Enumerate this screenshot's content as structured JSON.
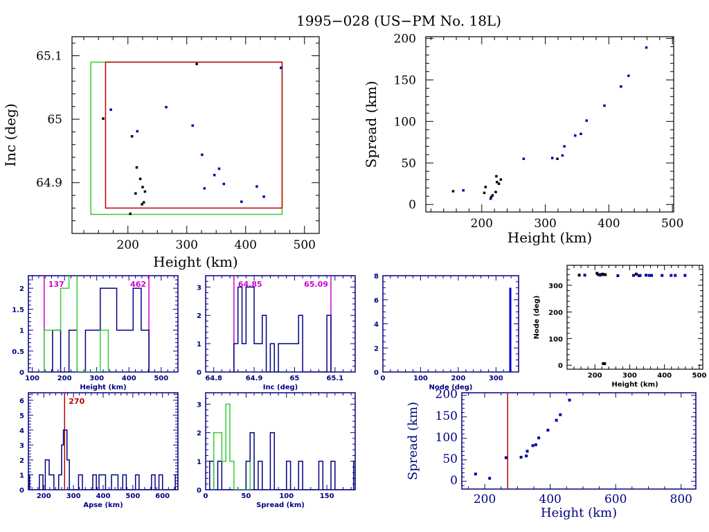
{
  "title": "1995−028 (US−PM No. 18L)",
  "colors": {
    "axis_black": "#000000",
    "axis_blue": "#000080",
    "blue_points": "#0000b0",
    "black_points": "#000000",
    "green": "#33cc33",
    "red": "#c00000",
    "magenta": "#d000d0",
    "node_bar": "#0000cc"
  },
  "chart_data": [
    {
      "id": "inc-vs-height",
      "type": "scatter",
      "title": "",
      "xlabel": "Height (km)",
      "ylabel": "Inc (deg)",
      "xlim": [
        105,
        525
      ],
      "ylim": [
        64.82,
        65.13
      ],
      "xticks": [
        200,
        300,
        400,
        500
      ],
      "yticks": [
        64.9,
        65,
        65.1
      ],
      "xtick_labels": [
        "200",
        "300",
        "400",
        "500"
      ],
      "ytick_labels": [
        "64.9",
        "65",
        "65.1"
      ],
      "style": "black-axes",
      "boxes": [
        {
          "name": "green-box",
          "color": "green",
          "x": [
            137,
            462
          ],
          "y": [
            64.85,
            65.09
          ]
        },
        {
          "name": "red-box",
          "color": "red",
          "x": [
            162,
            462
          ],
          "y": [
            64.86,
            65.09
          ]
        }
      ],
      "series": [
        {
          "name": "black",
          "color": "black_points",
          "points": [
            [
              317,
              65.087
            ],
            [
              158,
              65.001
            ],
            [
              207,
              64.973
            ],
            [
              215,
              64.924
            ],
            [
              221,
              64.906
            ],
            [
              225,
              64.893
            ],
            [
              213,
              64.883
            ],
            [
              229,
              64.886
            ],
            [
              224,
              64.866
            ],
            [
              227,
              64.869
            ],
            [
              204,
              64.851
            ]
          ]
        },
        {
          "name": "blue",
          "color": "blue_points",
          "points": [
            [
              460,
              65.081
            ],
            [
              171,
              65.015
            ],
            [
              265,
              65.019
            ],
            [
              310,
              64.99
            ],
            [
              216,
              64.981
            ],
            [
              326,
              64.944
            ],
            [
              355,
              64.922
            ],
            [
              347,
              64.912
            ],
            [
              363,
              64.898
            ],
            [
              330,
              64.891
            ],
            [
              419,
              64.894
            ],
            [
              431,
              64.878
            ],
            [
              393,
              64.87
            ]
          ]
        }
      ]
    },
    {
      "id": "spread-vs-height",
      "type": "scatter",
      "title": "",
      "xlabel": "Height (km)",
      "ylabel": "Spread (km)",
      "xlim": [
        112,
        502
      ],
      "ylim": [
        -9,
        202
      ],
      "xticks": [
        200,
        300,
        400,
        500
      ],
      "yticks": [
        0,
        50,
        100,
        150,
        200
      ],
      "xtick_labels": [
        "200",
        "300",
        "400",
        "500"
      ],
      "ytick_labels": [
        "0",
        "50",
        "100",
        "150",
        "200"
      ],
      "style": "black-axes",
      "series": [
        {
          "name": "black",
          "color": "black_points",
          "points": [
            [
              155,
              16
            ],
            [
              204,
              14
            ],
            [
              206,
              21
            ],
            [
              217,
              11
            ],
            [
              215,
              9
            ],
            [
              222,
              15
            ],
            [
              223,
              34
            ],
            [
              224,
              27
            ],
            [
              227,
              25
            ],
            [
              230,
              30
            ],
            [
              319,
              55
            ]
          ]
        },
        {
          "name": "blue",
          "color": "blue_points",
          "points": [
            [
              171,
              17
            ],
            [
              214,
              7
            ],
            [
              266,
              55
            ],
            [
              311,
              56
            ],
            [
              327,
              59
            ],
            [
              330,
              70
            ],
            [
              347,
              83
            ],
            [
              356,
              85
            ],
            [
              365,
              101
            ],
            [
              393,
              119
            ],
            [
              419,
              142
            ],
            [
              431,
              155
            ],
            [
              459,
              189
            ]
          ]
        }
      ]
    },
    {
      "id": "height-histogram",
      "type": "bar",
      "title": "",
      "xlabel": "Height (km)",
      "ylabel": "",
      "xlim": [
        88,
        552
      ],
      "ylim": [
        0,
        2.3
      ],
      "xticks": [
        100,
        200,
        300,
        400,
        500
      ],
      "yticks": [
        0,
        0.5,
        1,
        1.5,
        2
      ],
      "xtick_labels": [
        "100",
        "200",
        "300",
        "400",
        "500"
      ],
      "ytick_labels": [
        "0",
        "0.5",
        "1",
        "1.5",
        "2"
      ],
      "style": "blue-axes",
      "vlines": [
        {
          "x": 137,
          "color": "magenta",
          "label": "137",
          "label_side": "right"
        },
        {
          "x": 462,
          "color": "magenta",
          "label": "462",
          "label_side": "left"
        }
      ],
      "series": [
        {
          "name": "blue-hist",
          "color": "axis_blue",
          "step_x": [
            163,
            188,
            214,
            239,
            265,
            311,
            362,
            413,
            438,
            462
          ],
          "step_y": [
            1,
            0,
            1,
            0,
            1,
            2,
            1,
            2,
            1
          ]
        },
        {
          "name": "green-hist",
          "color": "green",
          "step_x": [
            137,
            163,
            188,
            214,
            239,
            311,
            336
          ],
          "step_y": [
            1,
            1,
            2,
            3,
            0,
            1
          ]
        }
      ]
    },
    {
      "id": "inc-histogram",
      "type": "bar",
      "title": "",
      "xlabel": "Inc (deg)",
      "ylabel": "",
      "xlim": [
        64.78,
        65.15
      ],
      "ylim": [
        0,
        3.4
      ],
      "xticks": [
        64.8,
        64.9,
        65,
        65.1
      ],
      "yticks": [
        0,
        1,
        2,
        3
      ],
      "xtick_labels": [
        "64.8",
        "64.9",
        "65",
        "65.1"
      ],
      "ytick_labels": [
        "0",
        "1",
        "2",
        "3"
      ],
      "style": "blue-axes",
      "vlines": [
        {
          "x": 64.85,
          "color": "magenta",
          "label": "64.85",
          "label_side": "right"
        },
        {
          "x": 65.09,
          "color": "magenta",
          "label": "65.09",
          "label_side": "left"
        }
      ],
      "series": [
        {
          "name": "blue-hist",
          "color": "axis_blue",
          "step_x": [
            64.85,
            64.86,
            64.87,
            64.88,
            64.9,
            64.92,
            64.93,
            64.94,
            64.95,
            64.96,
            64.98,
            65.01,
            65.02,
            65.08,
            65.09
          ],
          "step_y": [
            1,
            3,
            1,
            3,
            1,
            2,
            0,
            1,
            0,
            1,
            1,
            2,
            0,
            2
          ]
        }
      ]
    },
    {
      "id": "node-histogram",
      "type": "bar",
      "title": "",
      "xlabel": "Node (deg)",
      "ylabel": "",
      "xlim": [
        0,
        360
      ],
      "ylim": [
        0,
        8
      ],
      "xticks": [
        0,
        100,
        200,
        300
      ],
      "yticks": [
        0,
        2,
        4,
        6,
        8
      ],
      "xtick_labels": [
        "0",
        "100",
        "200",
        "300"
      ],
      "ytick_labels": [
        "0",
        "2",
        "4",
        "6",
        "8"
      ],
      "style": "blue-axes",
      "bars": [
        {
          "x": 338,
          "value": 7
        }
      ]
    },
    {
      "id": "node-vs-height",
      "type": "scatter",
      "title": "",
      "xlabel": "Height (km)",
      "ylabel": "Node (deg)",
      "xlim": [
        120,
        510
      ],
      "ylim": [
        -15,
        375
      ],
      "xticks": [
        200,
        300,
        400,
        500
      ],
      "yticks": [
        0,
        100,
        200,
        300
      ],
      "xtick_labels": [
        "200",
        "300",
        "400",
        "500"
      ],
      "ytick_labels": [
        "0",
        "100",
        "200",
        "300"
      ],
      "style": "black-axes",
      "series": [
        {
          "name": "black",
          "color": "black_points",
          "points": [
            [
              155,
              338
            ],
            [
              206,
              345
            ],
            [
              210,
              340
            ],
            [
              217,
              340
            ],
            [
              222,
              342
            ],
            [
              227,
              340
            ],
            [
              230,
              340
            ],
            [
              319,
              342
            ],
            [
              224,
              6
            ],
            [
              228,
              6
            ]
          ]
        },
        {
          "name": "blue",
          "color": "blue_points",
          "points": [
            [
              171,
              338
            ],
            [
              215,
              338
            ],
            [
              266,
              336
            ],
            [
              311,
              337
            ],
            [
              327,
              336
            ],
            [
              330,
              337
            ],
            [
              347,
              338
            ],
            [
              356,
              337
            ],
            [
              363,
              337
            ],
            [
              393,
              337
            ],
            [
              419,
              337
            ],
            [
              431,
              337
            ],
            [
              459,
              337
            ]
          ]
        }
      ]
    },
    {
      "id": "apse-histogram",
      "type": "bar",
      "title": "",
      "xlabel": "Apse (km)",
      "ylabel": "",
      "xlim": [
        148,
        652
      ],
      "ylim": [
        0,
        6.5
      ],
      "xticks": [
        200,
        300,
        400,
        500,
        600
      ],
      "yticks": [
        0,
        1,
        2,
        3,
        4,
        5,
        6
      ],
      "xtick_labels": [
        "200",
        "300",
        "400",
        "500",
        "600"
      ],
      "ytick_labels": [
        "0",
        "1",
        "2",
        "3",
        "4",
        "5",
        "6"
      ],
      "style": "blue-axes",
      "vlines": [
        {
          "x": 270,
          "color": "red",
          "label": "270",
          "label_side": "right"
        }
      ],
      "series": [
        {
          "name": "blue-hist",
          "color": "axis_blue",
          "step_x": [
            148,
            152,
            185,
            197,
            205,
            218,
            234,
            250,
            260,
            266,
            278,
            286,
            317,
            330,
            365,
            377,
            386,
            408,
            428,
            450,
            466,
            478,
            509,
            521,
            563,
            575,
            588,
            600,
            643,
            652
          ],
          "step_y": [
            1,
            0,
            1,
            0,
            2,
            1,
            0,
            1,
            3,
            4,
            2,
            0,
            1,
            0,
            1,
            0,
            1,
            0,
            1,
            0,
            1,
            0,
            1,
            0,
            1,
            0,
            1,
            0,
            1
          ]
        }
      ]
    },
    {
      "id": "spread-histogram",
      "type": "bar",
      "title": "",
      "xlabel": "Spread (km)",
      "ylabel": "",
      "xlim": [
        0,
        185
      ],
      "ylim": [
        0,
        3.4
      ],
      "xticks": [
        0,
        50,
        100,
        150
      ],
      "yticks": [
        0,
        1,
        2,
        3
      ],
      "xtick_labels": [
        "0",
        "50",
        "100",
        "150"
      ],
      "ytick_labels": [
        "0",
        "1",
        "2",
        "3"
      ],
      "style": "blue-axes",
      "series": [
        {
          "name": "blue-hist",
          "color": "axis_blue",
          "step_x": [
            5,
            10,
            15,
            20,
            50,
            55,
            60,
            65,
            70,
            80,
            85,
            100,
            105,
            115,
            120,
            140,
            145,
            155,
            160,
            183,
            185
          ],
          "step_y": [
            1,
            0,
            1,
            0,
            1,
            2,
            0,
            1,
            0,
            2,
            0,
            1,
            0,
            1,
            0,
            1,
            0,
            1,
            0,
            1
          ]
        },
        {
          "name": "green-hist",
          "color": "green",
          "step_x": [
            10,
            20,
            25,
            30,
            35,
            55,
            55
          ],
          "step_y": [
            2,
            1,
            3,
            1,
            0,
            1
          ]
        }
      ]
    },
    {
      "id": "spread-vs-height-wide",
      "type": "scatter",
      "title": "",
      "xlabel": "Height (km)",
      "ylabel": "Spread (km)",
      "xlim": [
        130,
        845
      ],
      "ylim": [
        -18,
        206
      ],
      "xticks": [
        200,
        400,
        600,
        800
      ],
      "yticks": [
        0,
        50,
        100,
        150,
        200
      ],
      "xtick_labels": [
        "200",
        "400",
        "600",
        "800"
      ],
      "ytick_labels": [
        "0",
        "50",
        "100",
        "150",
        "200"
      ],
      "style": "blue-axes-large",
      "vlines": [
        {
          "x": 270,
          "color": "red",
          "label": "",
          "label_side": "right"
        }
      ],
      "series": [
        {
          "name": "blue",
          "color": "blue_points",
          "points": [
            [
              172,
              17
            ],
            [
              215,
              7
            ],
            [
              265,
              55
            ],
            [
              311,
              56
            ],
            [
              327,
              59
            ],
            [
              330,
              70
            ],
            [
              347,
              83
            ],
            [
              356,
              85
            ],
            [
              365,
              101
            ],
            [
              393,
              119
            ],
            [
              419,
              142
            ],
            [
              431,
              155
            ],
            [
              459,
              189
            ]
          ]
        }
      ]
    }
  ]
}
